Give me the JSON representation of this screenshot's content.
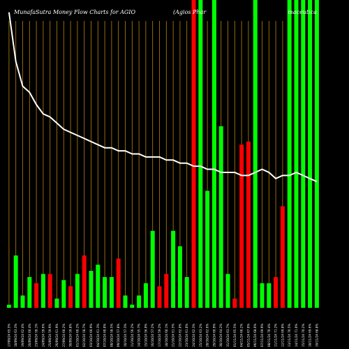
{
  "chart_data": {
    "type": "bar",
    "title": "MunafaSutra  Money Flow  Charts for AGIO",
    "subtitle": "(Agios Phar                                              maceutica",
    "colors": {
      "up": "#00ff00",
      "down": "#ff0000",
      "line": "#ffffff",
      "grid": "#b8860b",
      "background": "#000000"
    },
    "grid": true,
    "ylim": [
      0,
      100
    ],
    "categories": [
      "17/09/24",
      "18/09/24",
      "19/09/24",
      "20/09/24",
      "23/09/24",
      "24/09/24",
      "25/09/24",
      "26/09/24",
      "27/09/24",
      "30/09/24",
      "01/10/24",
      "02/10/24",
      "03/10/24",
      "04/10/24",
      "07/10/24",
      "08/10/24",
      "09/10/24",
      "10/10/24",
      "11/10/24",
      "14/10/24",
      "15/10/24",
      "16/10/24",
      "17/10/24",
      "18/10/24",
      "21/10/24",
      "22/10/24",
      "23/10/24",
      "24/10/24",
      "25/10/24",
      "28/10/24",
      "29/10/24",
      "30/10/24",
      "31/10/24",
      "01/11/24",
      "04/11/24",
      "05/11/24",
      "06/11/24",
      "07/11/24",
      "08/11/24",
      "11/11/24",
      "12/11/24",
      "13/11/24",
      "14/11/24",
      "15/11/24",
      "18/11/24",
      "19/11/24"
    ],
    "tick_labels": [
      "17/09/24 65.5%",
      "18/09/24 63.3%",
      "19/09/24 62.4%",
      "20/09/24 60.4%",
      "23/09/24 58.1%",
      "24/09/24 59.6%",
      "25/09/24 59.9%",
      "26/09/24 61.9%",
      "27/09/24 60.2%",
      "30/09/24 59.8%",
      "01/10/24 60.2%",
      "02/10/24 58.7%",
      "03/10/24 60.9%",
      "04/10/24 61.3%",
      "07/10/24 60.0%",
      "08/10/24 58.5%",
      "09/10/24 57.8%",
      "10/10/24 57.3%",
      "11/10/24 56.2%",
      "14/10/24 55.7%",
      "15/10/24 56.9%",
      "16/10/24 57.2%",
      "17/10/24 59.2%",
      "18/10/24 60.1%",
      "21/10/24 61.5%",
      "22/10/24 62.0%",
      "23/10/24 61.0%",
      "24/10/24 62.3%",
      "25/10/24 63.2%",
      "28/10/24 62.6%",
      "29/10/24 60.9%",
      "30/10/24 64.2%",
      "31/10/24 63.7%",
      "01/11/24 65.5%",
      "04/11/24 66.2%",
      "05/11/24 67.0%",
      "06/11/24 68.6%",
      "07/11/24 69.9%",
      "08/11/24 70.4%",
      "11/11/24 71.2%",
      "12/11/24 69.8%",
      "13/11/24 70.5%",
      "14/11/24 71.0%",
      "15/11/24 70.2%",
      "18/11/24 69.6%",
      "19/11/24 68.8%"
    ],
    "series": [
      {
        "values": [
          1,
          17,
          4,
          10,
          8,
          11,
          11,
          3,
          9,
          7,
          11,
          17,
          12,
          14,
          10,
          10,
          16,
          4,
          1,
          4,
          8,
          25,
          7,
          11,
          25,
          20,
          10,
          100,
          100,
          38,
          100,
          59,
          11,
          3,
          53,
          54,
          100,
          8,
          8,
          10,
          33,
          100,
          100,
          100,
          100,
          100
        ],
        "directions": [
          "up",
          "up",
          "up",
          "up",
          "down",
          "up",
          "down",
          "up",
          "up",
          "down",
          "up",
          "down",
          "up",
          "up",
          "up",
          "up",
          "down",
          "up",
          "up",
          "up",
          "up",
          "up",
          "down",
          "down",
          "up",
          "up",
          "up",
          "down",
          "up",
          "up",
          "up",
          "up",
          "up",
          "down",
          "down",
          "down",
          "up",
          "up",
          "up",
          "down",
          "down",
          "up",
          "up",
          "up",
          "up",
          "up"
        ]
      },
      {
        "type": "line",
        "values": [
          96,
          80,
          72,
          70,
          66,
          63,
          62,
          60,
          58,
          57,
          56,
          55,
          54,
          53,
          52,
          52,
          51,
          51,
          50,
          50,
          49,
          49,
          49,
          48,
          48,
          47,
          47,
          46,
          46,
          45,
          45,
          44,
          44,
          44,
          43,
          43,
          44,
          45,
          44,
          42,
          43,
          43,
          44,
          43,
          42,
          41
        ]
      }
    ]
  }
}
